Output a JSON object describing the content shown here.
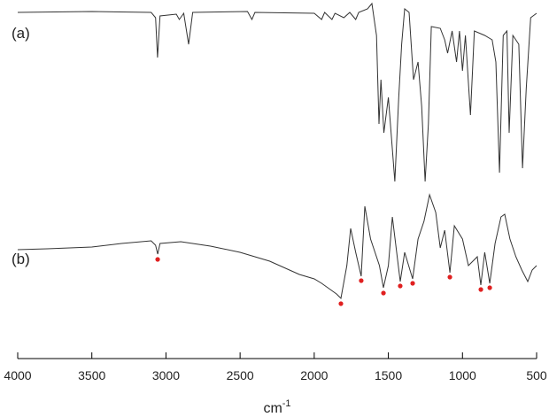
{
  "chart_data": {
    "type": "line",
    "xlabel": "cm",
    "xlabel_sup": "-1",
    "xlim": [
      4000,
      500
    ],
    "xticks": [
      4000,
      3500,
      3000,
      2500,
      2000,
      1500,
      1000,
      500
    ],
    "ylim": [
      0,
      405
    ],
    "series": [
      {
        "name": "(a)",
        "color": "#333333",
        "x": [
          4000,
          3500,
          3100,
          3070,
          3057,
          3040,
          2930,
          2910,
          2880,
          2847,
          2820,
          2450,
          2420,
          2400,
          2000,
          1950,
          1930,
          1880,
          1860,
          1800,
          1760,
          1720,
          1700,
          1640,
          1611,
          1580,
          1563,
          1550,
          1530,
          1500,
          1456,
          1430,
          1410,
          1390,
          1360,
          1330,
          1300,
          1275,
          1252,
          1230,
          1210,
          1150,
          1120,
          1100,
          1070,
          1040,
          1020,
          1000,
          980,
          946,
          920,
          850,
          800,
          775,
          750,
          725,
          700,
          685,
          660,
          620,
          595,
          570,
          540,
          500
        ],
        "values": [
          391,
          392,
          391,
          385,
          340,
          387,
          389,
          383,
          390,
          355,
          391,
          392,
          383,
          391,
          390,
          383,
          391,
          383,
          390,
          385,
          391,
          383,
          391,
          395,
          401,
          365,
          265,
          315,
          255,
          295,
          200,
          295,
          355,
          395,
          391,
          315,
          335,
          285,
          200,
          265,
          375,
          373,
          360,
          345,
          370,
          335,
          370,
          325,
          365,
          275,
          370,
          365,
          360,
          335,
          210,
          365,
          370,
          255,
          365,
          355,
          215,
          305,
          385,
          390
        ]
      },
      {
        "name": "(b)",
        "color": "#333333",
        "x": [
          4000,
          3800,
          3500,
          3300,
          3100,
          3070,
          3056,
          3040,
          2900,
          2700,
          2500,
          2300,
          2100,
          2000,
          1950,
          1900,
          1850,
          1820,
          1780,
          1754,
          1720,
          1683,
          1659,
          1620,
          1560,
          1533,
          1500,
          1473,
          1420,
          1390,
          1336,
          1300,
          1260,
          1222,
          1180,
          1150,
          1120,
          1085,
          1055,
          1000,
          960,
          900,
          876,
          850,
          816,
          780,
          740,
          715,
          680,
          640,
          600,
          560,
          530,
          500
        ],
        "values": [
          123,
          124,
          126,
          130,
          133,
          128,
          118,
          130,
          132,
          127,
          120,
          110,
          95,
          90,
          85,
          79,
          73,
          68,
          105,
          147,
          120,
          93,
          172,
          135,
          105,
          80,
          105,
          160,
          87,
          120,
          90,
          135,
          155,
          185,
          165,
          125,
          145,
          97,
          150,
          135,
          105,
          115,
          83,
          120,
          85,
          130,
          160,
          163,
          135,
          115,
          100,
          87,
          100,
          105
        ]
      }
    ],
    "markers": {
      "color": "#e02020",
      "x": [
        3056,
        1820,
        1683,
        1533,
        1420,
        1336,
        1085,
        876,
        816
      ],
      "values": [
        112,
        62,
        88,
        74,
        82,
        85,
        92,
        78,
        80
      ]
    }
  }
}
